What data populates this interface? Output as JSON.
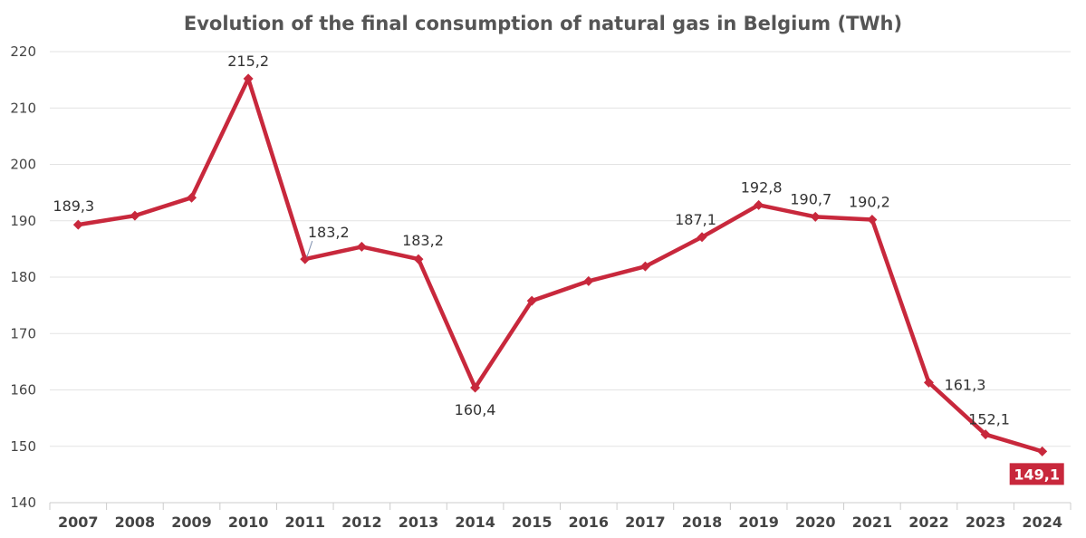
{
  "chart_data": {
    "type": "line",
    "title": "Evolution of the final consumption of natural gas in Belgium (TWh)",
    "xlabel": "",
    "ylabel": "",
    "ylim": [
      140,
      220
    ],
    "yticks": [
      140,
      150,
      160,
      170,
      180,
      190,
      200,
      210,
      220
    ],
    "categories": [
      "2007",
      "2008",
      "2009",
      "2010",
      "2011",
      "2012",
      "2013",
      "2014",
      "2015",
      "2016",
      "2017",
      "2018",
      "2019",
      "2020",
      "2021",
      "2022",
      "2023",
      "2024"
    ],
    "series": [
      {
        "values": [
          189.3,
          190.9,
          194.1,
          215.2,
          183.2,
          185.4,
          183.2,
          160.4,
          175.8,
          179.3,
          181.9,
          187.1,
          192.8,
          190.7,
          190.2,
          161.3,
          152.1,
          149.1
        ],
        "color": "#c8283c"
      }
    ],
    "data_labels": [
      {
        "index": 0,
        "text": "189,3"
      },
      {
        "index": 3,
        "text": "215,2"
      },
      {
        "index": 4,
        "text": "183,2"
      },
      {
        "index": 6,
        "text": "183,2"
      },
      {
        "index": 7,
        "text": "160,4"
      },
      {
        "index": 11,
        "text": "187,1"
      },
      {
        "index": 12,
        "text": "192,8"
      },
      {
        "index": 13,
        "text": "190,7"
      },
      {
        "index": 14,
        "text": "190,2"
      },
      {
        "index": 15,
        "text": "161,3"
      },
      {
        "index": 16,
        "text": "152,1"
      },
      {
        "index": 17,
        "text": "149,1",
        "highlight": true
      }
    ],
    "grid": true,
    "legend": "none"
  }
}
